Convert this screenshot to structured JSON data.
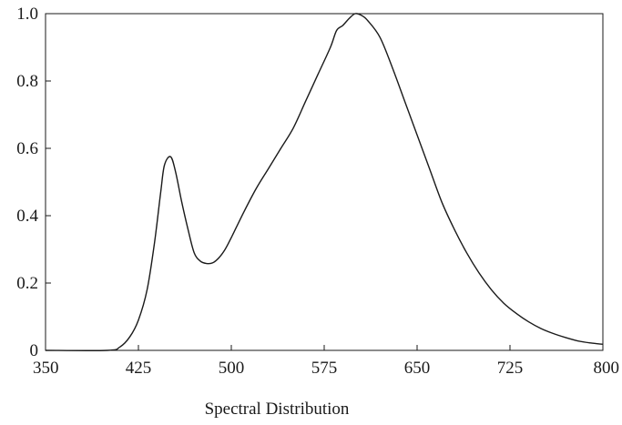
{
  "chart_data": {
    "type": "line",
    "title": "",
    "xlabel": "Spectral Distribution",
    "ylabel": "",
    "xlim": [
      350,
      800
    ],
    "ylim": [
      0,
      1.0
    ],
    "grid": false,
    "x_ticks": [
      350,
      425,
      500,
      575,
      650,
      725,
      800
    ],
    "x_tick_labels": [
      "350",
      "425",
      "500",
      "575",
      "650",
      "725",
      "800"
    ],
    "y_ticks": [
      0,
      0.2,
      0.4,
      0.6,
      0.8,
      1.0
    ],
    "y_tick_labels": [
      "0",
      "0.2",
      "0.4",
      "0.6",
      "0.8",
      "1.0"
    ],
    "series": [
      {
        "color": "#1a1a1a",
        "points": [
          [
            350,
            0.0
          ],
          [
            400,
            0.0
          ],
          [
            410,
            0.01
          ],
          [
            418,
            0.04
          ],
          [
            425,
            0.09
          ],
          [
            432,
            0.18
          ],
          [
            438,
            0.32
          ],
          [
            443,
            0.47
          ],
          [
            446,
            0.55
          ],
          [
            451,
            0.575
          ],
          [
            455,
            0.53
          ],
          [
            460,
            0.44
          ],
          [
            465,
            0.36
          ],
          [
            470,
            0.29
          ],
          [
            475,
            0.265
          ],
          [
            480,
            0.258
          ],
          [
            485,
            0.26
          ],
          [
            490,
            0.275
          ],
          [
            495,
            0.3
          ],
          [
            500,
            0.335
          ],
          [
            510,
            0.41
          ],
          [
            520,
            0.48
          ],
          [
            530,
            0.54
          ],
          [
            540,
            0.6
          ],
          [
            550,
            0.66
          ],
          [
            560,
            0.74
          ],
          [
            570,
            0.82
          ],
          [
            580,
            0.9
          ],
          [
            585,
            0.95
          ],
          [
            590,
            0.965
          ],
          [
            595,
            0.985
          ],
          [
            600,
            1.0
          ],
          [
            605,
            0.995
          ],
          [
            610,
            0.98
          ],
          [
            620,
            0.93
          ],
          [
            630,
            0.84
          ],
          [
            640,
            0.74
          ],
          [
            650,
            0.64
          ],
          [
            660,
            0.54
          ],
          [
            670,
            0.44
          ],
          [
            680,
            0.36
          ],
          [
            690,
            0.29
          ],
          [
            700,
            0.23
          ],
          [
            710,
            0.18
          ],
          [
            720,
            0.14
          ],
          [
            730,
            0.11
          ],
          [
            740,
            0.085
          ],
          [
            750,
            0.065
          ],
          [
            760,
            0.05
          ],
          [
            770,
            0.038
          ],
          [
            780,
            0.028
          ],
          [
            790,
            0.022
          ],
          [
            800,
            0.018
          ]
        ]
      }
    ]
  }
}
